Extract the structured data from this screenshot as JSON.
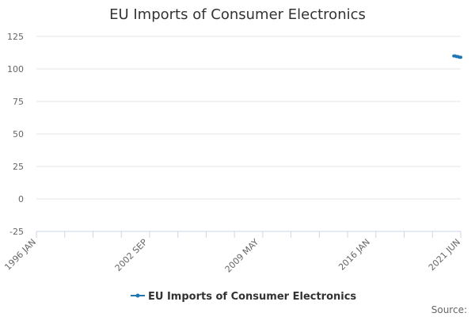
{
  "chart_data": {
    "type": "line",
    "title": "EU Imports of Consumer Electronics",
    "xlabel": "",
    "ylabel": "",
    "ylim": [
      -25,
      125
    ],
    "y_ticks": [
      125,
      100,
      75,
      50,
      25,
      0,
      -25
    ],
    "x_range": [
      "1996-01",
      "2021-06"
    ],
    "x_tick_labels": [
      "1996 JAN",
      "2002 SEP",
      "2009 MAY",
      "2016 JAN",
      "2021 JUN"
    ],
    "x_tick_positions": [
      "1996-01",
      "2002-09",
      "2009-05",
      "2016-01",
      "2021-06"
    ],
    "grid": true,
    "legend_position": "bottom",
    "series": [
      {
        "name": "EU Imports of Consumer Electronics",
        "color": "#1f77b4",
        "points": [
          {
            "x": "2021-01",
            "y": 110.0
          },
          {
            "x": "2021-02",
            "y": 110.0
          },
          {
            "x": "2021-03",
            "y": 109.5
          },
          {
            "x": "2021-04",
            "y": 109.5
          },
          {
            "x": "2021-05",
            "y": 109.0
          },
          {
            "x": "2021-06",
            "y": 109.0
          }
        ]
      }
    ],
    "source_label": "Source:"
  }
}
